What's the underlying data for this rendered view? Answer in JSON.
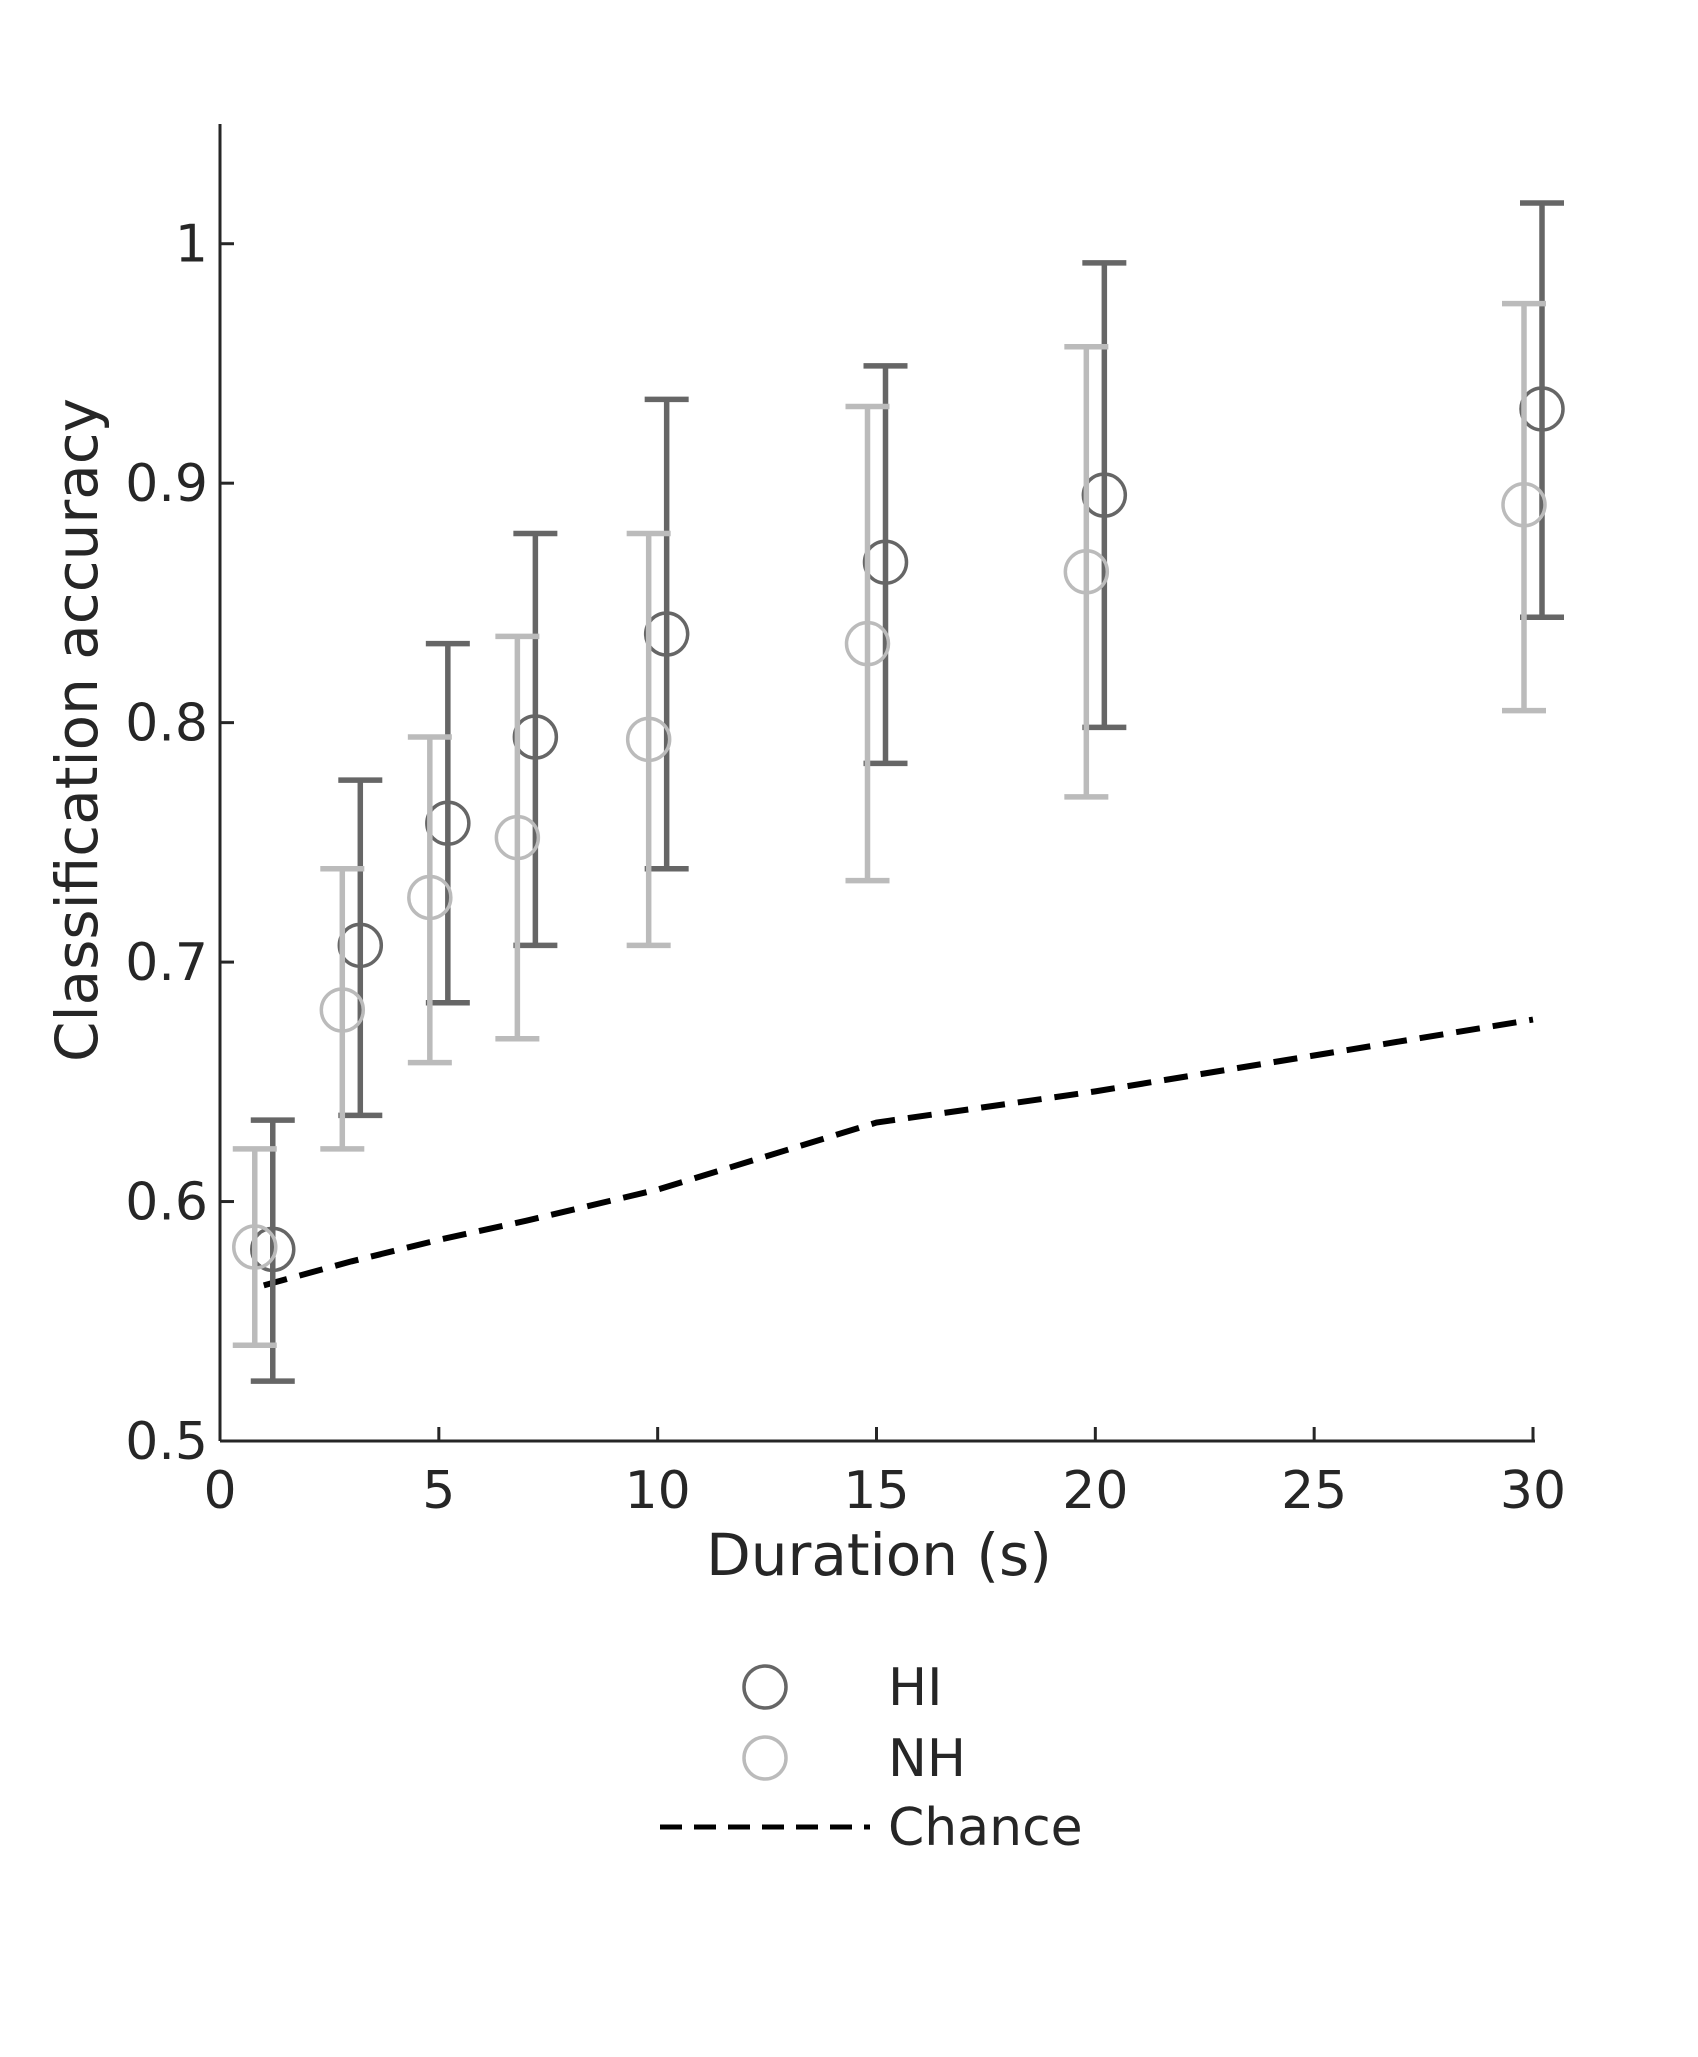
{
  "chart_data": {
    "type": "scatter",
    "title": "",
    "xlabel": "Duration (s)",
    "ylabel": "Classification accuracy",
    "xlim": [
      0,
      30
    ],
    "ylim": [
      0.5,
      1.05
    ],
    "xticks": [
      0,
      5,
      10,
      15,
      20,
      25,
      30
    ],
    "xtick_labels": [
      "0",
      "5",
      "10",
      "15",
      "20",
      "25",
      "30"
    ],
    "yticks": [
      0.5,
      0.6,
      0.7,
      0.8,
      0.9,
      1.0
    ],
    "ytick_labels": [
      "0.5",
      "0.6",
      "0.7",
      "0.8",
      "0.9",
      "1"
    ],
    "grid": false,
    "legend_position": "bottom-center",
    "series": [
      {
        "name": "HI",
        "marker": "open-circle",
        "color": "#666666",
        "x": [
          1,
          3,
          5,
          7,
          10,
          15,
          20,
          30
        ],
        "y": [
          0.58,
          0.707,
          0.758,
          0.794,
          0.837,
          0.867,
          0.895,
          0.931
        ],
        "err_low": [
          0.525,
          0.636,
          0.683,
          0.707,
          0.739,
          0.783,
          0.798,
          0.844
        ],
        "err_high": [
          0.634,
          0.776,
          0.833,
          0.879,
          0.935,
          0.949,
          0.992,
          1.017
        ]
      },
      {
        "name": "NH",
        "marker": "open-circle",
        "color": "#bbbbbb",
        "x": [
          1,
          3,
          5,
          7,
          10,
          15,
          20,
          30
        ],
        "y": [
          0.581,
          0.68,
          0.727,
          0.752,
          0.793,
          0.833,
          0.863,
          0.891
        ],
        "err_low": [
          0.54,
          0.622,
          0.658,
          0.668,
          0.707,
          0.734,
          0.769,
          0.805
        ],
        "err_high": [
          0.622,
          0.739,
          0.794,
          0.836,
          0.879,
          0.932,
          0.957,
          0.975
        ]
      },
      {
        "name": "Chance",
        "line_style": "dashed",
        "color": "#000000",
        "x": [
          1,
          3,
          5,
          7,
          10,
          15,
          20,
          30
        ],
        "y": [
          0.565,
          0.575,
          0.584,
          0.592,
          0.605,
          0.633,
          0.646,
          0.676
        ]
      }
    ]
  }
}
